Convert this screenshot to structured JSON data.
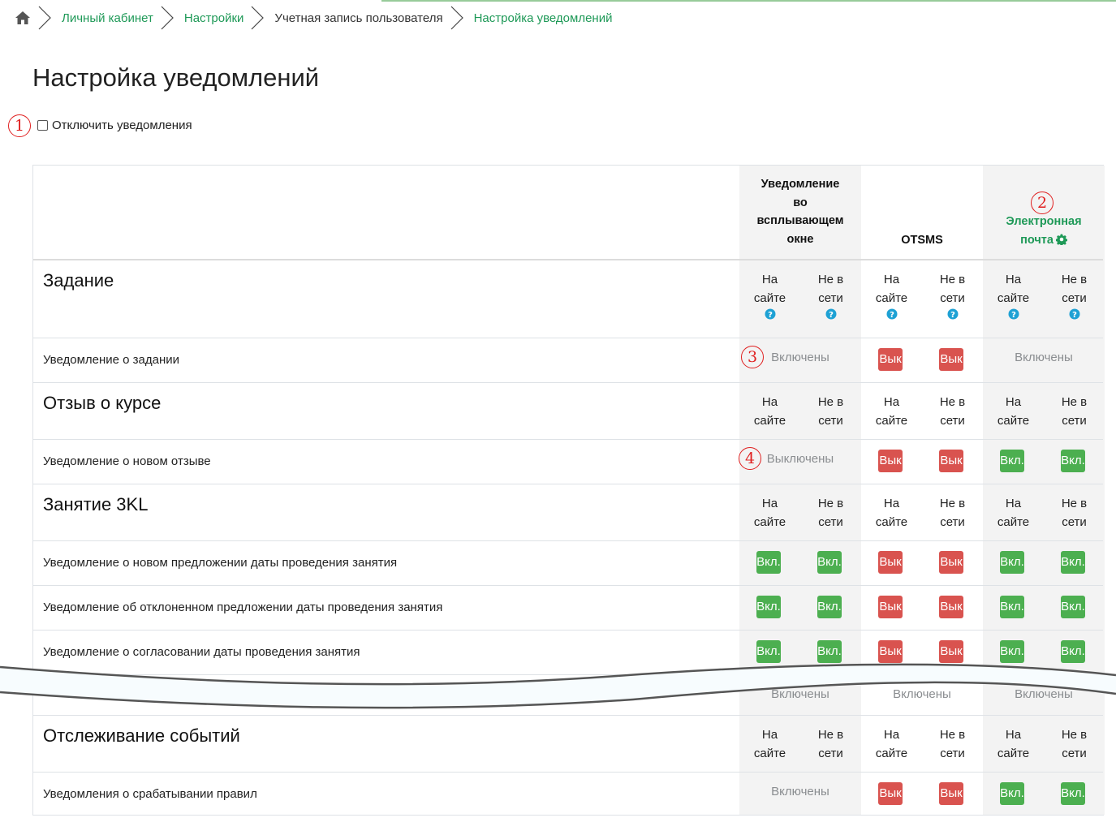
{
  "breadcrumb": {
    "items": [
      {
        "label": "Личный кабинет"
      },
      {
        "label": "Настройки"
      },
      {
        "label": "Учетная запись пользователя"
      },
      {
        "label": "Настройка уведомлений"
      }
    ]
  },
  "page": {
    "title": "Настройка уведомлений",
    "disable_label": "Отключить уведомления"
  },
  "markers": [
    "1",
    "2",
    "3",
    "4"
  ],
  "processors": [
    {
      "name": "Уведомление во всплывающем окне",
      "lines": [
        "Уведомление",
        "во",
        "всплывающем",
        "окне"
      ]
    },
    {
      "name": "OTSMS",
      "lines": [
        "OTSMS"
      ]
    },
    {
      "name": "Электронная почта",
      "lines": [
        "Электронная",
        "почта"
      ],
      "has_settings": true
    }
  ],
  "states": {
    "online_lines": [
      "На",
      "сайте"
    ],
    "offline_lines": [
      "Не в",
      "сети"
    ]
  },
  "labels": {
    "enabled_state": "Включены",
    "disabled_state": "Выключены",
    "on": "Вкл.",
    "off": "Вык"
  },
  "components": [
    {
      "title": "Задание",
      "help": true,
      "prefs": [
        {
          "label": "Уведомление о задании",
          "cells": [
            {
              "type": "text",
              "value": "Включены"
            },
            {
              "type": "toggles",
              "values": [
                "off",
                "off"
              ]
            },
            {
              "type": "text",
              "value": "Включены"
            }
          ]
        }
      ]
    },
    {
      "title": "Отзыв о курсе",
      "help": false,
      "prefs": [
        {
          "label": "Уведомление о новом отзыве",
          "cells": [
            {
              "type": "text",
              "value": "Выключены"
            },
            {
              "type": "toggles",
              "values": [
                "off",
                "off"
              ]
            },
            {
              "type": "toggles",
              "values": [
                "on",
                "on"
              ]
            }
          ]
        }
      ]
    },
    {
      "title": "Занятие 3KL",
      "help": false,
      "prefs": [
        {
          "label": "Уведомление о новом предложении даты проведения занятия",
          "cells": [
            {
              "type": "toggles",
              "values": [
                "on",
                "on"
              ]
            },
            {
              "type": "toggles",
              "values": [
                "off",
                "off"
              ]
            },
            {
              "type": "toggles",
              "values": [
                "on",
                "on"
              ]
            }
          ]
        },
        {
          "label": "Уведомление об отклоненном предложении даты проведения занятия",
          "cells": [
            {
              "type": "toggles",
              "values": [
                "on",
                "on"
              ]
            },
            {
              "type": "toggles",
              "values": [
                "off",
                "off"
              ]
            },
            {
              "type": "toggles",
              "values": [
                "on",
                "on"
              ]
            }
          ]
        },
        {
          "label": "Уведомление о согласовании даты проведения занятия",
          "cells": [
            {
              "type": "toggles",
              "values": [
                "on",
                "on"
              ]
            },
            {
              "type": "toggles",
              "values": [
                "off",
                "off"
              ]
            },
            {
              "type": "toggles",
              "values": [
                "on",
                "on"
              ]
            }
          ]
        },
        {
          "label": "",
          "cells": [
            {
              "type": "text",
              "value": "Включены"
            },
            {
              "type": "text",
              "value": "Включены"
            },
            {
              "type": "text",
              "value": "Включены"
            }
          ]
        }
      ]
    },
    {
      "title": "Отслеживание событий",
      "help": false,
      "prefs": [
        {
          "label": "Уведомления о срабатывании правил",
          "cells": [
            {
              "type": "text",
              "value": "Включены"
            },
            {
              "type": "toggles",
              "values": [
                "off",
                "off"
              ]
            },
            {
              "type": "toggles",
              "values": [
                "on",
                "on"
              ]
            }
          ]
        }
      ]
    }
  ],
  "colors": {
    "link": "#1e9957",
    "on": "#4caf50",
    "off": "#d9534f",
    "shade": "#f3f3f3",
    "marker": "#e02020",
    "help": "#1ea1d4"
  }
}
